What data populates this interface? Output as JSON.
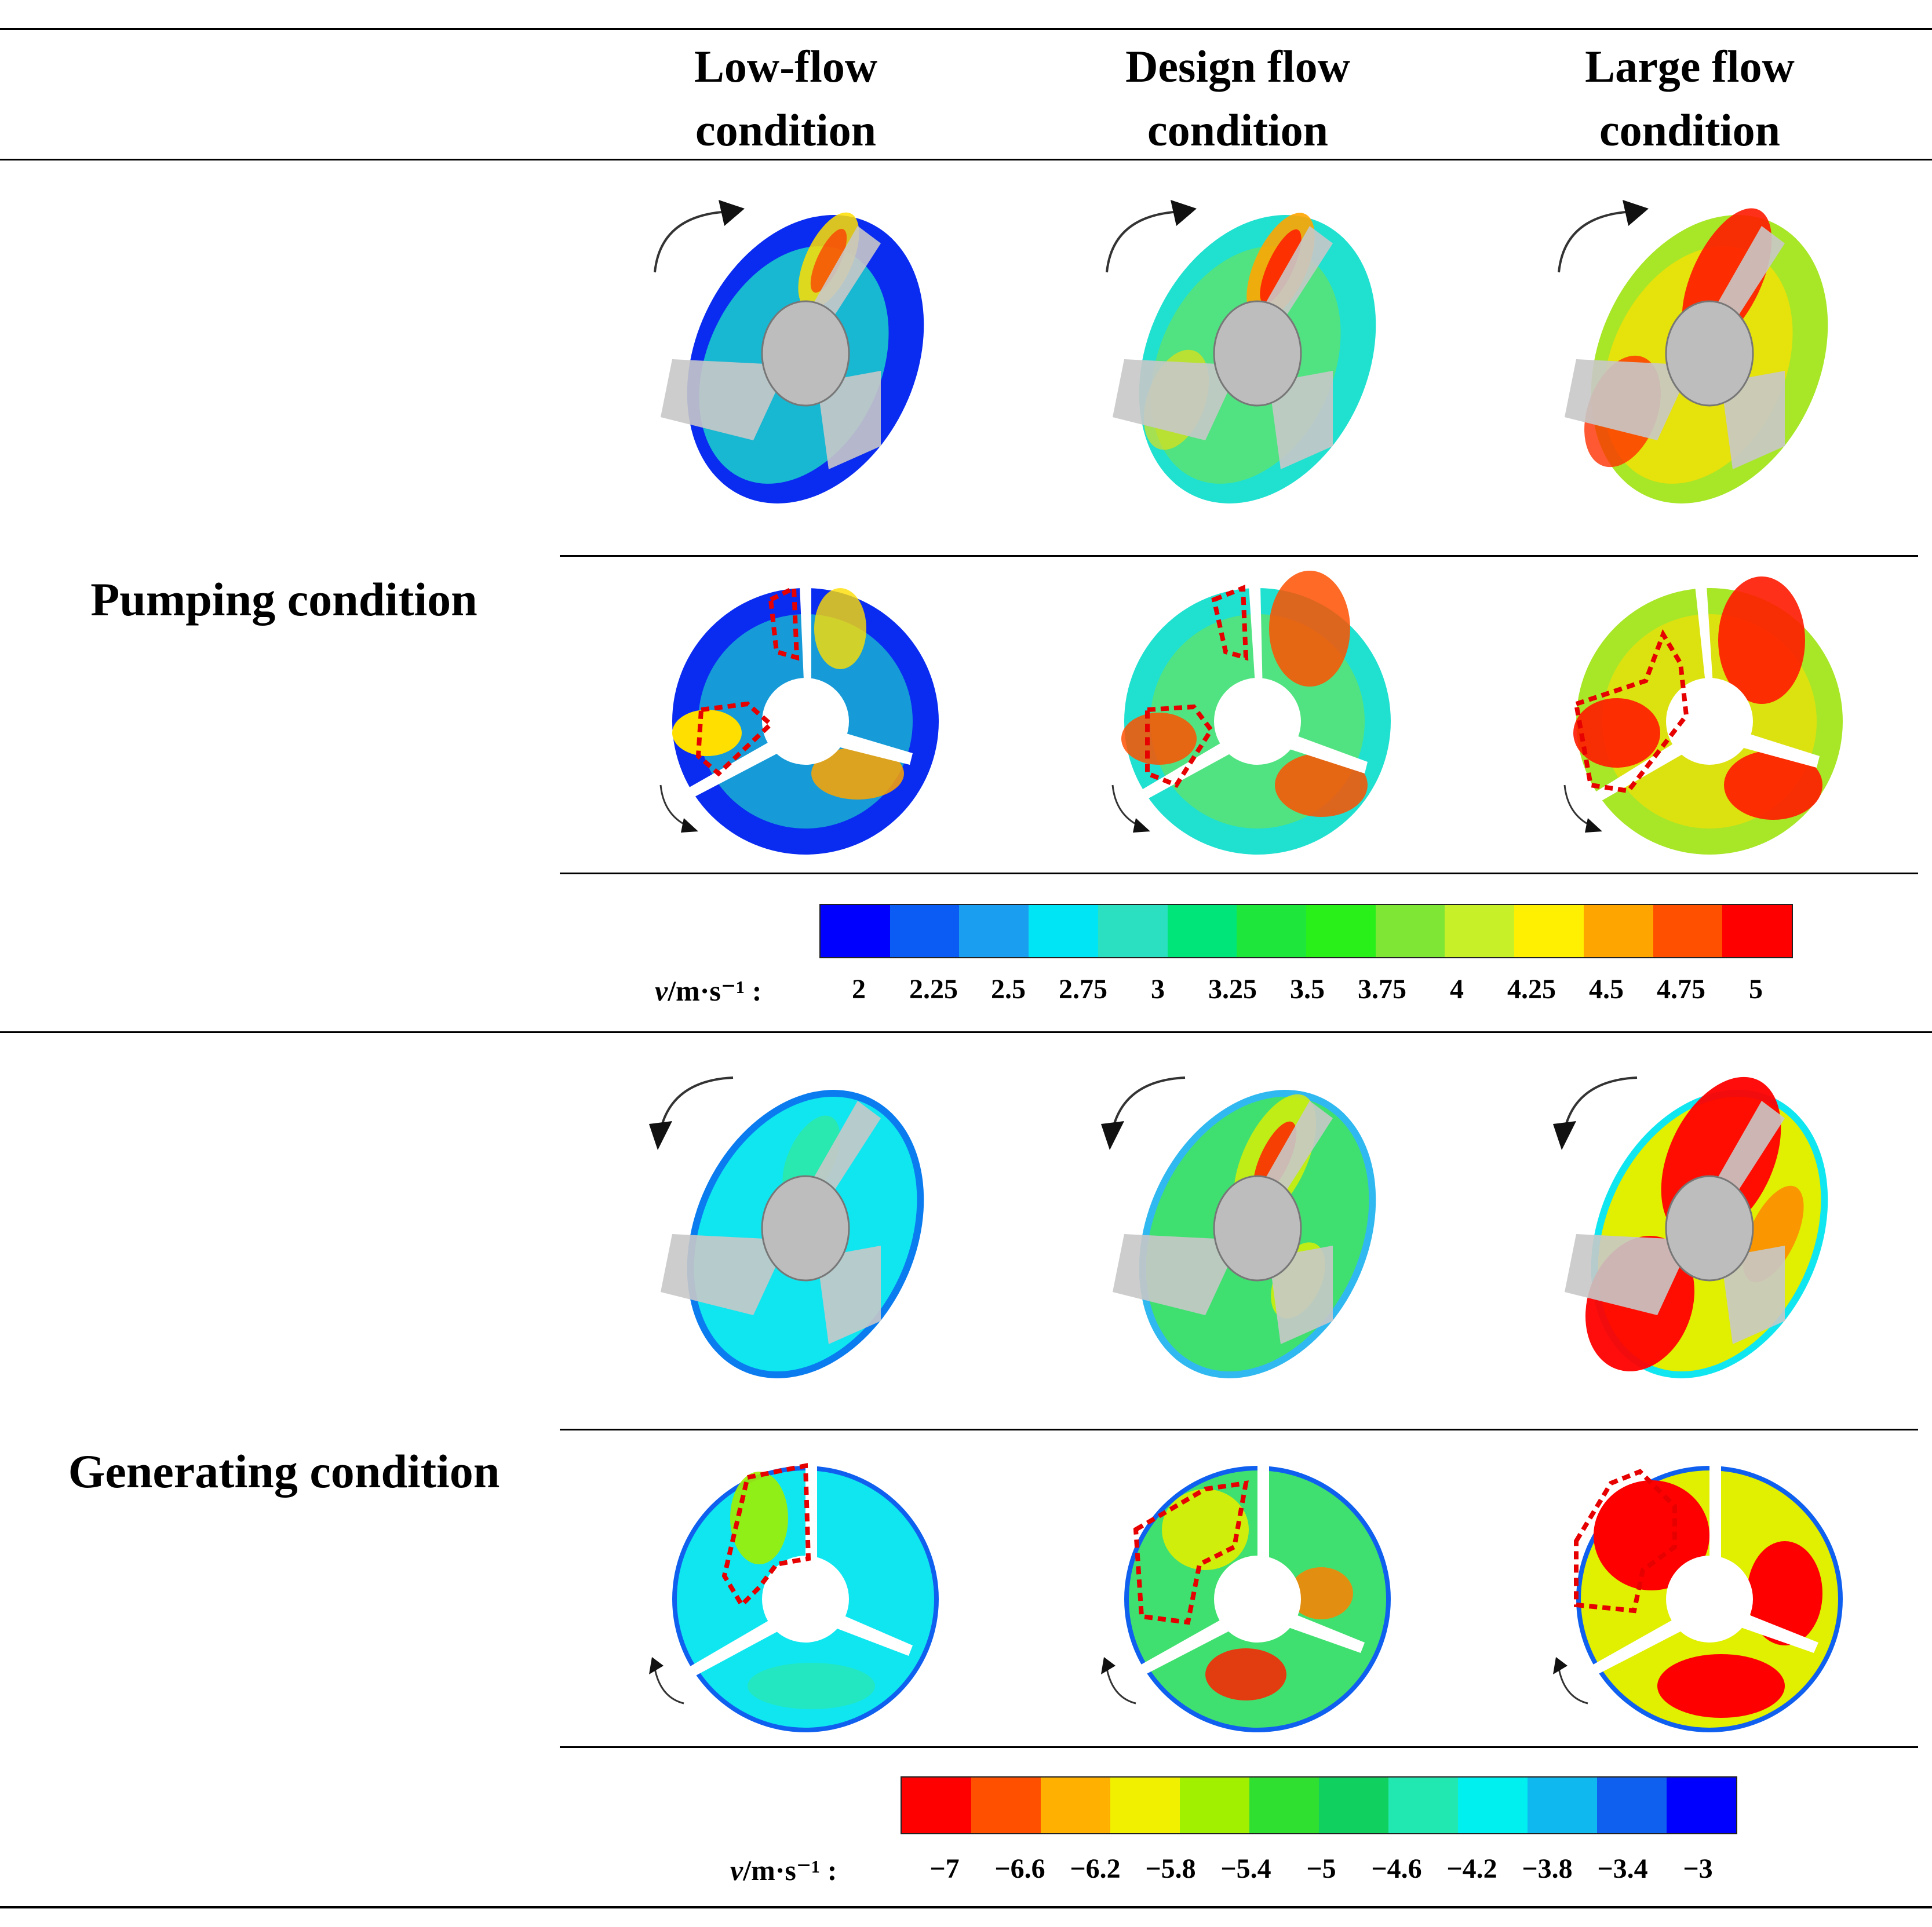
{
  "columns": [
    "Low-flow condition",
    "Design flow condition",
    "Large flow condition"
  ],
  "columns_split": [
    [
      "Low-flow",
      "condition"
    ],
    [
      "Design flow",
      "condition"
    ],
    [
      "Large flow",
      "condition"
    ]
  ],
  "rows": {
    "pumping": {
      "label": "Pumping condition"
    },
    "generating": {
      "label": "Generating condition"
    }
  },
  "pumping_colorbar": {
    "unit_italic": "v",
    "unit_rest": "/m·s⁻¹ :",
    "ticks": [
      "2",
      "2.25",
      "2.5",
      "2.75",
      "3",
      "3.25",
      "3.5",
      "3.75",
      "4",
      "4.25",
      "4.5",
      "4.75",
      "5"
    ],
    "colors": [
      "#0000ff",
      "#0a5cf5",
      "#1a9ff0",
      "#00e5f5",
      "#2be0c0",
      "#00e57a",
      "#1ee63a",
      "#2af01a",
      "#80e636",
      "#c8f028",
      "#ffef00",
      "#ffa500",
      "#ff5000",
      "#ff0000"
    ]
  },
  "generating_colorbar": {
    "unit_italic": "v",
    "unit_rest": "/m·s⁻¹ :",
    "ticks": [
      "−7",
      "−6.6",
      "−6.2",
      "−5.8",
      "−5.4",
      "−5",
      "−4.6",
      "−4.2",
      "−3.8",
      "−3.4",
      "−3"
    ],
    "colors": [
      "#ff0000",
      "#ff5000",
      "#ffb000",
      "#f0f000",
      "#a0f000",
      "#30e030",
      "#10d060",
      "#20e8b0",
      "#00f0f0",
      "#10b8f0",
      "#1060f0",
      "#0000ff"
    ]
  },
  "panel_colors": {
    "pump_low": {
      "base": "#0a2cf0",
      "mid": "#1ee6c8",
      "hot": "#ffdf00"
    },
    "pump_design": {
      "base": "#20e0d0",
      "mid": "#7ae640",
      "hot": "#ff3000"
    },
    "pump_large": {
      "base": "#a8e628",
      "mid": "#ffe000",
      "hot": "#ff1a00"
    },
    "gen_low": {
      "base": "#10e6f0",
      "mid": "#30e8a0",
      "hot": "#a0f000"
    },
    "gen_design": {
      "base": "#40e070",
      "mid": "#e0f000",
      "hot": "#ff2000"
    },
    "gen_large": {
      "base": "#e0f000",
      "mid": "#ff8000",
      "hot": "#ff0000"
    }
  }
}
